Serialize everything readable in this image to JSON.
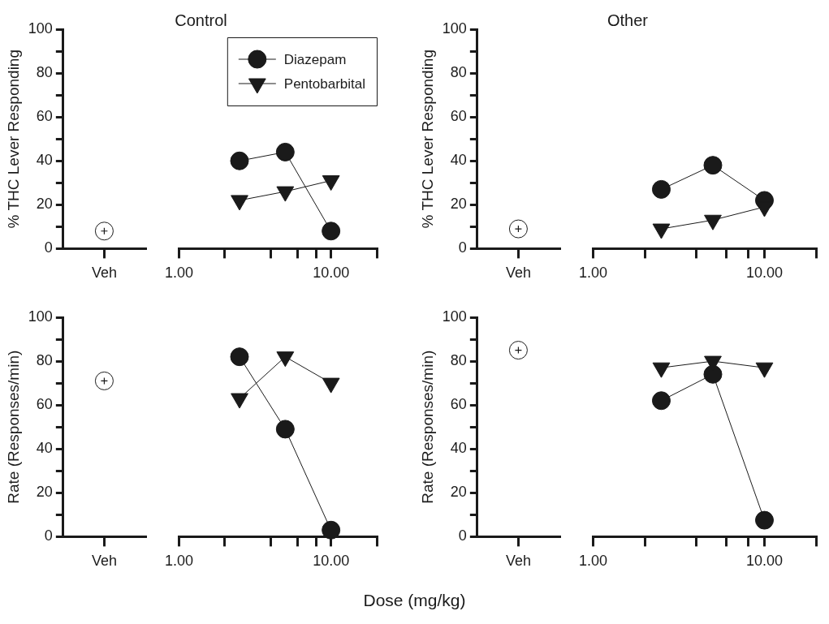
{
  "chart_data": [
    {
      "type": "scatter",
      "ylabel": "% THC Lever Responding",
      "categories": [
        "Veh"
      ],
      "ylim": [
        0,
        100
      ],
      "yticks": [
        0,
        {
          "value": 10,
          "label": null
        },
        20,
        {
          "value": 30,
          "label": null
        },
        40,
        {
          "value": 50,
          "label": null
        },
        60,
        {
          "value": 70,
          "label": null
        },
        80,
        {
          "value": 90,
          "label": null
        },
        100
      ],
      "marker": "circle",
      "series": [
        {
          "color": "#1a1a1a",
          "values": [
            8
          ]
        }
      ]
    },
    {
      "type": "line",
      "title": "Control",
      "x": [
        2.5,
        5,
        10
      ],
      "log": "x",
      "xlim": [
        1,
        20
      ],
      "xticks": [
        {
          "value": 1,
          "label": "1.00"
        },
        {
          "value": 2,
          "label": null
        },
        {
          "value": 4,
          "label": null
        },
        {
          "value": 6,
          "label": null
        },
        {
          "value": 8,
          "label": null
        },
        {
          "value": 10,
          "label": "10.00"
        },
        {
          "value": 20,
          "label": null
        }
      ],
      "ylim": [
        0,
        100
      ],
      "tick_labels": "x",
      "legend": "top right",
      "series": [
        {
          "name": "Diazepam",
          "color": "#1a1a1a",
          "marker": "circle",
          "values": [
            40,
            44,
            8
          ]
        },
        {
          "name": "Pentobarbital",
          "color": "#1a1a1a",
          "marker": "triangle",
          "values": [
            22,
            26,
            31
          ]
        }
      ]
    },
    {
      "type": "scatter",
      "ylabel": "% THC Lever Responding",
      "categories": [
        "Veh"
      ],
      "ylim": [
        0,
        100
      ],
      "yticks": [
        0,
        {
          "value": 10,
          "label": null
        },
        20,
        {
          "value": 30,
          "label": null
        },
        40,
        {
          "value": 50,
          "label": null
        },
        60,
        {
          "value": 70,
          "label": null
        },
        80,
        {
          "value": 90,
          "label": null
        },
        100
      ],
      "marker": "circle",
      "series": [
        {
          "color": "#1a1a1a",
          "values": [
            9
          ]
        }
      ]
    },
    {
      "type": "line",
      "title": "Other",
      "x": [
        2.5,
        5,
        10
      ],
      "log": "x",
      "xlim": [
        1,
        20
      ],
      "xticks": [
        {
          "value": 1,
          "label": "1.00"
        },
        {
          "value": 2,
          "label": null
        },
        {
          "value": 4,
          "label": null
        },
        {
          "value": 6,
          "label": null
        },
        {
          "value": 8,
          "label": null
        },
        {
          "value": 10,
          "label": "10.00"
        },
        {
          "value": 20,
          "label": null
        }
      ],
      "ylim": [
        0,
        100
      ],
      "tick_labels": "x",
      "series": [
        {
          "color": "#1a1a1a",
          "marker": "circle",
          "values": [
            27,
            38,
            22
          ]
        },
        {
          "color": "#1a1a1a",
          "marker": "triangle",
          "values": [
            9,
            13,
            19
          ]
        }
      ]
    },
    {
      "type": "scatter",
      "ylabel": "Rate (Responses/min)",
      "categories": [
        "Veh"
      ],
      "ylim": [
        0,
        100
      ],
      "yticks": [
        0,
        {
          "value": 10,
          "label": null
        },
        20,
        {
          "value": 30,
          "label": null
        },
        40,
        {
          "value": 50,
          "label": null
        },
        60,
        {
          "value": 70,
          "label": null
        },
        80,
        {
          "value": 90,
          "label": null
        },
        100
      ],
      "marker": "circle",
      "series": [
        {
          "color": "#1a1a1a",
          "values": [
            71
          ]
        }
      ]
    },
    {
      "type": "line",
      "xlabel": "Dose (mg/kg)",
      "x": [
        2.5,
        5,
        10
      ],
      "log": "x",
      "xlim": [
        1,
        20
      ],
      "xticks": [
        {
          "value": 1,
          "label": "1.00"
        },
        {
          "value": 2,
          "label": null
        },
        {
          "value": 4,
          "label": null
        },
        {
          "value": 6,
          "label": null
        },
        {
          "value": 8,
          "label": null
        },
        {
          "value": 10,
          "label": "10.00"
        },
        {
          "value": 20,
          "label": null
        }
      ],
      "ylim": [
        0,
        100
      ],
      "tick_labels": "x",
      "series": [
        {
          "color": "#1a1a1a",
          "marker": "circle",
          "values": [
            82,
            49,
            3
          ]
        },
        {
          "color": "#1a1a1a",
          "marker": "triangle",
          "values": [
            63,
            82,
            70
          ]
        }
      ]
    },
    {
      "type": "scatter",
      "ylabel": "Rate (Responses/min)",
      "categories": [
        "Veh"
      ],
      "ylim": [
        0,
        100
      ],
      "yticks": [
        0,
        {
          "value": 10,
          "label": null
        },
        20,
        {
          "value": 30,
          "label": null
        },
        40,
        {
          "value": 50,
          "label": null
        },
        60,
        {
          "value": 70,
          "label": null
        },
        80,
        {
          "value": 90,
          "label": null
        },
        100
      ],
      "marker": "circle",
      "series": [
        {
          "color": "#1a1a1a",
          "values": [
            85
          ]
        }
      ]
    },
    {
      "type": "line",
      "x": [
        2.5,
        5,
        10
      ],
      "log": "x",
      "xlim": [
        1,
        20
      ],
      "xticks": [
        {
          "value": 1,
          "label": "1.00"
        },
        {
          "value": 2,
          "label": null
        },
        {
          "value": 4,
          "label": null
        },
        {
          "value": 6,
          "label": null
        },
        {
          "value": 8,
          "label": null
        },
        {
          "value": 10,
          "label": "10.00"
        },
        {
          "value": 20,
          "label": null
        }
      ],
      "ylim": [
        0,
        100
      ],
      "tick_labels": "x",
      "series": [
        {
          "color": "#1a1a1a",
          "marker": "circle",
          "values": [
            62,
            74,
            7.5
          ]
        },
        {
          "color": "#1a1a1a",
          "marker": "triangle",
          "values": [
            77,
            80,
            77
          ]
        }
      ]
    }
  ]
}
